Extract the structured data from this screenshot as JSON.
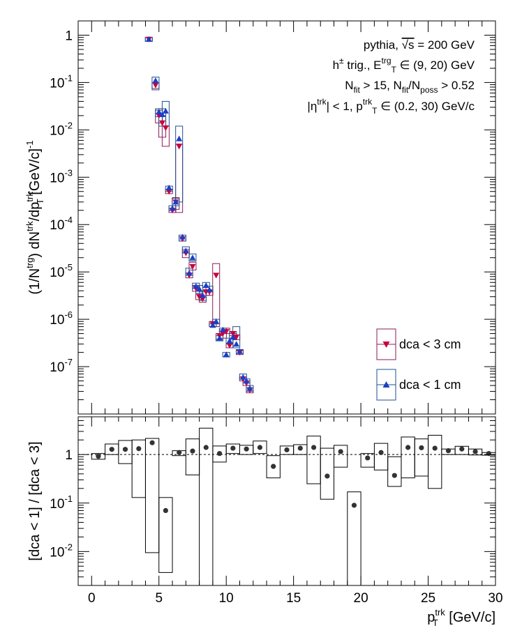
{
  "chart_data": [
    {
      "type": "scatter",
      "panel": "upper",
      "title": "",
      "ylabel_parts": {
        "pre": "(1/N",
        "sup1": "trg",
        "mid1": ") dN",
        "sup2": "trk",
        "mid2": "/dp",
        "sub1": "T",
        "sup3": "trk",
        "post": " [GeV/c]",
        "sup4": "-1"
      },
      "y_scale": "log",
      "ylim": [
        1e-08,
        2
      ],
      "xlim": [
        -1,
        30
      ],
      "y_ticks": [
        {
          "value": 1,
          "base": "1",
          "exp": ""
        },
        {
          "value": 0.1,
          "base": "10",
          "exp": "-1"
        },
        {
          "value": 0.01,
          "base": "10",
          "exp": "-2"
        },
        {
          "value": 0.001,
          "base": "10",
          "exp": "-3"
        },
        {
          "value": 0.0001,
          "base": "10",
          "exp": "-4"
        },
        {
          "value": 1e-05,
          "base": "10",
          "exp": "-5"
        },
        {
          "value": 1e-06,
          "base": "10",
          "exp": "-6"
        },
        {
          "value": 1e-07,
          "base": "10",
          "exp": "-7"
        }
      ],
      "annotations": [
        {
          "parts": [
            {
              "t": "pythia, "
            },
            {
              "t": "√s",
              "o": true
            },
            {
              "t": " = 200 GeV"
            }
          ]
        },
        {
          "parts": [
            {
              "t": "h"
            },
            {
              "t": "±",
              "sup": true
            },
            {
              "t": " trig., E"
            },
            {
              "t": "trg",
              "sup": true
            },
            {
              "t": "T",
              "sub": true
            },
            {
              "t": " ∈ (9, 20) GeV"
            }
          ]
        },
        {
          "parts": [
            {
              "t": "N"
            },
            {
              "t": "fit",
              "sub": true
            },
            {
              "t": " > 15, N"
            },
            {
              "t": "fit",
              "sub": true
            },
            {
              "t": "/N"
            },
            {
              "t": "poss",
              "sub": true
            },
            {
              "t": " > 0.52"
            }
          ]
        },
        {
          "parts": [
            {
              "t": "|η"
            },
            {
              "t": "trk",
              "sup": true
            },
            {
              "t": "| < 1, p"
            },
            {
              "t": "trk",
              "sup": true
            },
            {
              "t": "T",
              "sub": true
            },
            {
              "t": " ∈ (0.2, 30) GeV/c"
            }
          ]
        }
      ],
      "legend": {
        "placement": "lower-right",
        "entries": [
          "dca < 3 cm",
          "dca < 1 cm"
        ]
      },
      "series": [
        {
          "name": "dca < 3 cm",
          "marker": "triangle-down",
          "color": "#C8003C",
          "box_color": "#8B1A5A",
          "points": [
            {
              "x": 4.25,
              "y": 0.82,
              "lo": 0.74,
              "hi": 0.9
            },
            {
              "x": 4.75,
              "y": 0.088,
              "lo": 0.075,
              "hi": 0.1
            },
            {
              "x": 5.0,
              "y": 0.02,
              "lo": 0.014,
              "hi": 0.026
            },
            {
              "x": 5.25,
              "y": 0.014,
              "lo": 0.007,
              "hi": 0.02
            },
            {
              "x": 5.5,
              "y": 0.011,
              "lo": 0.0045,
              "hi": 0.012
            },
            {
              "x": 5.75,
              "y": 0.0005,
              "lo": 0.00045,
              "hi": 0.00055
            },
            {
              "x": 6.0,
              "y": 0.0002,
              "lo": 0.00018,
              "hi": 0.00022
            },
            {
              "x": 6.25,
              "y": 0.0003,
              "lo": 0.00021,
              "hi": 0.00037
            },
            {
              "x": 6.5,
              "y": 0.0045,
              "lo": 0.00018,
              "hi": 0.005
            },
            {
              "x": 6.75,
              "y": 5e-05,
              "lo": 4.5e-05,
              "hi": 5.5e-05
            },
            {
              "x": 7.0,
              "y": 2.5e-05,
              "lo": 2e-05,
              "hi": 3e-05
            },
            {
              "x": 7.25,
              "y": 8.5e-06,
              "lo": 7.5e-06,
              "hi": 9.5e-06
            },
            {
              "x": 7.5,
              "y": 1.3e-05,
              "lo": 1.1e-05,
              "hi": 1.6e-05
            },
            {
              "x": 7.75,
              "y": 4.5e-06,
              "lo": 3.9e-06,
              "hi": 5.2e-06
            },
            {
              "x": 8.0,
              "y": 3e-06,
              "lo": 2.6e-06,
              "hi": 3.5e-06
            },
            {
              "x": 8.25,
              "y": 2.7e-06,
              "lo": 2.3e-06,
              "hi": 3e-06
            },
            {
              "x": 8.5,
              "y": 3.8e-06,
              "lo": 3.2e-06,
              "hi": 4e-06
            },
            {
              "x": 8.75,
              "y": 3.8e-06,
              "lo": 3.2e-06,
              "hi": 4e-06
            },
            {
              "x": 9.0,
              "y": 8e-07,
              "lo": 7e-07,
              "hi": 9e-07
            },
            {
              "x": 9.25,
              "y": 8.5e-06,
              "lo": 7e-07,
              "hi": 1.5e-05
            },
            {
              "x": 9.5,
              "y": 4.5e-07,
              "lo": 3.8e-07,
              "hi": 5e-07
            },
            {
              "x": 9.75,
              "y": 5e-07,
              "lo": 4e-07,
              "hi": 6e-07
            },
            {
              "x": 10.0,
              "y": 5.5e-07,
              "lo": 5e-07,
              "hi": 6.5e-07
            },
            {
              "x": 10.25,
              "y": 2.8e-07,
              "lo": 2.5e-07,
              "hi": 3.1e-07
            },
            {
              "x": 10.5,
              "y": 5e-07,
              "lo": 4.5e-07,
              "hi": 5.5e-07
            },
            {
              "x": 10.75,
              "y": 4.2e-07,
              "lo": 3.7e-07,
              "hi": 4.7e-07
            },
            {
              "x": 11.0,
              "y": 2e-07,
              "lo": 1.8e-07,
              "hi": 2.2e-07
            },
            {
              "x": 11.25,
              "y": 5.5e-08,
              "lo": 5e-08,
              "hi": 6e-08
            },
            {
              "x": 11.5,
              "y": 4.5e-08,
              "lo": 4e-08,
              "hi": 5e-08
            },
            {
              "x": 11.75,
              "y": 3.2e-08,
              "lo": 2.8e-08,
              "hi": 3.6e-08
            }
          ]
        },
        {
          "name": "dca < 1 cm",
          "marker": "triangle-up",
          "color": "#1A3FC8",
          "box_color": "#1E4F8C",
          "points": [
            {
              "x": 4.25,
              "y": 0.82,
              "lo": 0.74,
              "hi": 0.9
            },
            {
              "x": 4.75,
              "y": 0.11,
              "lo": 0.07,
              "hi": 0.13
            },
            {
              "x": 5.0,
              "y": 0.024,
              "lo": 0.019,
              "hi": 0.028
            },
            {
              "x": 5.25,
              "y": 0.021,
              "lo": 0.012,
              "hi": 0.028
            },
            {
              "x": 5.5,
              "y": 0.025,
              "lo": 0.012,
              "hi": 0.04
            },
            {
              "x": 5.75,
              "y": 0.0006,
              "lo": 0.0005,
              "hi": 0.00065
            },
            {
              "x": 6.0,
              "y": 0.00022,
              "lo": 0.0002,
              "hi": 0.00025
            },
            {
              "x": 6.25,
              "y": 0.0003,
              "lo": 0.00025,
              "hi": 0.00036
            },
            {
              "x": 6.5,
              "y": 0.0065,
              "lo": 0.0003,
              "hi": 0.012
            },
            {
              "x": 6.75,
              "y": 5.5e-05,
              "lo": 4.5e-05,
              "hi": 6e-05
            },
            {
              "x": 7.0,
              "y": 2.8e-05,
              "lo": 2.5e-05,
              "hi": 3.4e-05
            },
            {
              "x": 7.25,
              "y": 9.5e-06,
              "lo": 8.5e-06,
              "hi": 1.2e-05
            },
            {
              "x": 7.5,
              "y": 2e-05,
              "lo": 1.7e-05,
              "hi": 2.4e-05
            },
            {
              "x": 7.75,
              "y": 5e-06,
              "lo": 4.5e-06,
              "hi": 5.8e-06
            },
            {
              "x": 8.0,
              "y": 4.4e-06,
              "lo": 3.5e-06,
              "hi": 5.2e-06
            },
            {
              "x": 8.25,
              "y": 3.2e-06,
              "lo": 2.5e-06,
              "hi": 3.8e-06
            },
            {
              "x": 8.5,
              "y": 5.2e-06,
              "lo": 4.7e-06,
              "hi": 6e-06
            },
            {
              "x": 8.75,
              "y": 4.2e-06,
              "lo": 3.8e-06,
              "hi": 5e-06
            },
            {
              "x": 9.0,
              "y": 7.5e-07,
              "lo": 7e-07,
              "hi": 8e-07
            },
            {
              "x": 9.25,
              "y": 9e-07,
              "lo": 8e-07,
              "hi": 1e-06
            },
            {
              "x": 9.5,
              "y": 4e-07,
              "lo": 3.5e-07,
              "hi": 4.5e-07
            },
            {
              "x": 9.75,
              "y": 6e-07,
              "lo": 5.5e-07,
              "hi": 6.5e-07
            },
            {
              "x": 10.0,
              "y": 1.8e-07,
              "lo": 1.6e-07,
              "hi": 2e-07
            },
            {
              "x": 10.25,
              "y": 3.5e-07,
              "lo": 3e-07,
              "hi": 4e-07
            },
            {
              "x": 10.5,
              "y": 4.2e-07,
              "lo": 3.8e-07,
              "hi": 5e-07
            },
            {
              "x": 10.75,
              "y": 3e-07,
              "lo": 2.5e-07,
              "hi": 7e-07
            },
            {
              "x": 11.0,
              "y": 2.1e-07,
              "lo": 1.9e-07,
              "hi": 2.3e-07
            },
            {
              "x": 11.25,
              "y": 6e-08,
              "lo": 5.5e-08,
              "hi": 7e-08
            },
            {
              "x": 11.5,
              "y": 5e-08,
              "lo": 4.5e-08,
              "hi": 5.5e-08
            },
            {
              "x": 11.75,
              "y": 3.5e-08,
              "lo": 3e-08,
              "hi": 4e-08
            }
          ]
        }
      ]
    },
    {
      "type": "scatter",
      "panel": "lower",
      "title": "",
      "ylabel": "[dca < 1] / [dca < 3]",
      "xlabel_parts": {
        "pre": "p",
        "sup": "trk",
        "sub": "T",
        "post": " [GeV/c]"
      },
      "y_scale": "log",
      "ylim": [
        0.002,
        6
      ],
      "xlim": [
        -1,
        30
      ],
      "reference_line": 1,
      "x_ticks": [
        0,
        5,
        10,
        15,
        20,
        25,
        30
      ],
      "y_ticks": [
        {
          "value": 1,
          "base": "1",
          "exp": ""
        },
        {
          "value": 0.1,
          "base": "10",
          "exp": "-1"
        },
        {
          "value": 0.01,
          "base": "10",
          "exp": "-2"
        }
      ],
      "marker_color": "#333333",
      "points": [
        {
          "x": 0.5,
          "y": 0.92,
          "lo": 0.8,
          "hi": 1.05
        },
        {
          "x": 1.5,
          "y": 1.28,
          "lo": 1.0,
          "hi": 1.65
        },
        {
          "x": 2.5,
          "y": 1.28,
          "lo": 0.65,
          "hi": 1.95
        },
        {
          "x": 3.5,
          "y": 1.32,
          "lo": 0.13,
          "hi": 2.0
        },
        {
          "x": 4.5,
          "y": 1.75,
          "lo": 0.0095,
          "hi": 2.15
        },
        {
          "x": 5.5,
          "y": 0.07,
          "lo": 0.0037,
          "hi": 0.13
        },
        {
          "x": 6.5,
          "y": 1.1,
          "lo": 0.95,
          "hi": 1.2
        },
        {
          "x": 7.5,
          "y": 1.18,
          "lo": 0.38,
          "hi": 2.1
        },
        {
          "x": 8.5,
          "y": 1.4,
          "lo": 0.0015,
          "hi": 3.5
        },
        {
          "x": 9.5,
          "y": 1.05,
          "lo": 0.7,
          "hi": 1.5
        },
        {
          "x": 10.5,
          "y": 1.35,
          "lo": 1.05,
          "hi": 1.65
        },
        {
          "x": 11.5,
          "y": 1.3,
          "lo": 1.0,
          "hi": 1.55
        },
        {
          "x": 12.5,
          "y": 1.4,
          "lo": 1.05,
          "hi": 1.9
        },
        {
          "x": 13.5,
          "y": 0.57,
          "lo": 0.33,
          "hi": 0.95
        },
        {
          "x": 14.5,
          "y": 1.25,
          "lo": 1.0,
          "hi": 1.5
        },
        {
          "x": 15.5,
          "y": 1.35,
          "lo": 1.0,
          "hi": 1.6
        },
        {
          "x": 16.5,
          "y": 1.4,
          "lo": 0.25,
          "hi": 2.4
        },
        {
          "x": 17.5,
          "y": 0.36,
          "lo": 0.12,
          "hi": 1.35
        },
        {
          "x": 18.5,
          "y": 1.15,
          "lo": 0.55,
          "hi": 1.55
        },
        {
          "x": 19.5,
          "y": 0.09,
          "lo": 0.002,
          "hi": 0.17
        },
        {
          "x": 20.5,
          "y": 0.85,
          "lo": 0.55,
          "hi": 1.05
        },
        {
          "x": 21.5,
          "y": 1.1,
          "lo": 0.48,
          "hi": 1.7
        },
        {
          "x": 22.5,
          "y": 0.37,
          "lo": 0.22,
          "hi": 0.9
        },
        {
          "x": 23.5,
          "y": 1.4,
          "lo": 0.33,
          "hi": 2.3
        },
        {
          "x": 24.5,
          "y": 1.38,
          "lo": 0.36,
          "hi": 2.1
        },
        {
          "x": 25.5,
          "y": 1.35,
          "lo": 0.2,
          "hi": 2.5
        },
        {
          "x": 26.5,
          "y": 1.2,
          "lo": 1.0,
          "hi": 1.3
        },
        {
          "x": 27.5,
          "y": 1.3,
          "lo": 1.0,
          "hi": 1.48
        },
        {
          "x": 28.5,
          "y": 1.15,
          "lo": 0.98,
          "hi": 1.3
        },
        {
          "x": 29.5,
          "y": 1.05,
          "lo": 0.97,
          "hi": 1.1
        }
      ]
    }
  ]
}
